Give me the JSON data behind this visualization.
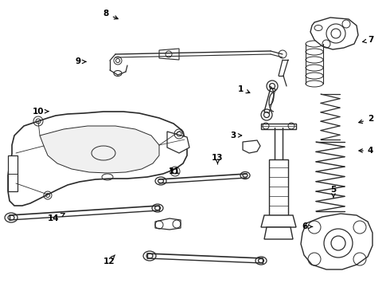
{
  "bg_color": "#ffffff",
  "line_color": "#2a2a2a",
  "fig_width": 4.9,
  "fig_height": 3.6,
  "dpi": 100,
  "label_positions": {
    "1": [
      0.618,
      0.31,
      0.648,
      0.328
    ],
    "2": [
      0.95,
      0.415,
      0.912,
      0.43
    ],
    "3": [
      0.598,
      0.472,
      0.628,
      0.472
    ],
    "4": [
      0.95,
      0.525,
      0.912,
      0.525
    ],
    "5": [
      0.855,
      0.66,
      0.855,
      0.69
    ],
    "6": [
      0.782,
      0.79,
      0.808,
      0.79
    ],
    "7": [
      0.95,
      0.14,
      0.922,
      0.148
    ],
    "8": [
      0.272,
      0.048,
      0.31,
      0.07
    ],
    "9": [
      0.2,
      0.215,
      0.228,
      0.215
    ],
    "10": [
      0.098,
      0.388,
      0.132,
      0.388
    ],
    "11": [
      0.448,
      0.598,
      0.43,
      0.58
    ],
    "12": [
      0.28,
      0.91,
      0.295,
      0.888
    ],
    "13": [
      0.558,
      0.55,
      0.558,
      0.572
    ],
    "14": [
      0.138,
      0.762,
      0.168,
      0.742
    ]
  }
}
